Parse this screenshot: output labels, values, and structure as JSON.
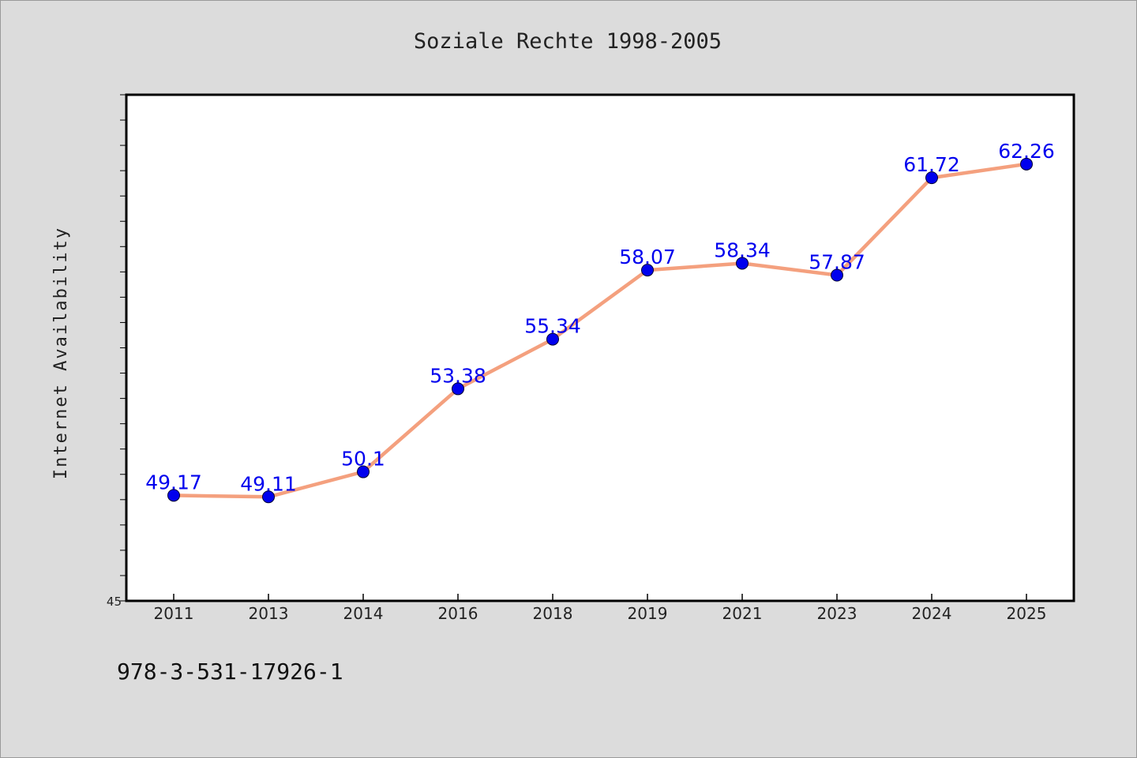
{
  "chart_data": {
    "type": "line",
    "title": "Soziale Rechte 1998-2005",
    "xlabel": "",
    "ylabel": "Internet Availability",
    "categories": [
      "2011",
      "2013",
      "2014",
      "2016",
      "2018",
      "2019",
      "2021",
      "2023",
      "2024",
      "2025"
    ],
    "series": [
      {
        "values": [
          49.17,
          49.11,
          50.1,
          53.38,
          55.34,
          58.07,
          58.34,
          57.87,
          61.72,
          62.26
        ]
      }
    ],
    "data_labels": [
      "49.17",
      "49.11",
      "50.1",
      "53.38",
      "55.34",
      "58.07",
      "58.34",
      "57.87",
      "61.72",
      "62.26"
    ],
    "ytick_labels": [
      "45"
    ],
    "ylim": [
      45,
      65
    ],
    "grid": false,
    "colors": {
      "line": "#f4a07e",
      "marker": "#0000ee",
      "label": "#0000ee",
      "background": "#dcdcdc",
      "plot_background": "#ffffff"
    }
  },
  "footnote": "978-3-531-17926-1"
}
